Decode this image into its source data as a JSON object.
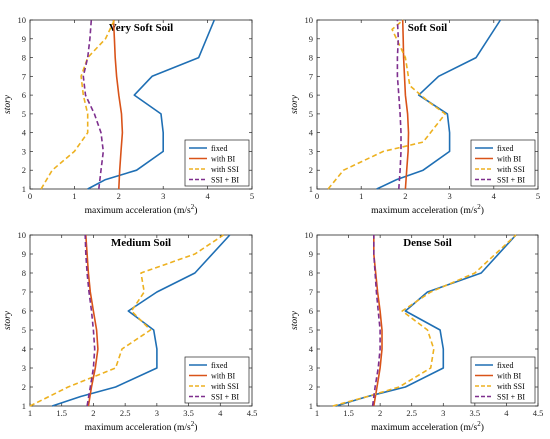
{
  "chart_data": [
    {
      "type": "line",
      "title": "Very Soft Soil",
      "xlabel": "maximum acceleration (m/s",
      "xlabel_sup": "2",
      "xlabel_close": ")",
      "ylabel": "story",
      "xlim": [
        0,
        5
      ],
      "ylim": [
        1,
        10
      ],
      "xticks": [
        "0",
        "1",
        "2",
        "3",
        "4",
        "5"
      ],
      "xtick_values": [
        0,
        1,
        2,
        3,
        4,
        5
      ],
      "yticks": [
        "1",
        "2",
        "3",
        "4",
        "5",
        "6",
        "7",
        "8",
        "9",
        "10"
      ],
      "legend_position": "lower-right",
      "series": [
        {
          "name": "fixed",
          "color": "#1f6fb4",
          "dash": "none",
          "x": [
            1.3,
            1.7,
            2.4,
            3.0,
            3.0,
            2.95,
            2.35,
            2.75,
            3.8,
            4.15
          ],
          "y": [
            1,
            1.5,
            2,
            3,
            4,
            5,
            6,
            7,
            8,
            10
          ]
        },
        {
          "name": "with BI",
          "color": "#d95319",
          "dash": "none",
          "x": [
            2.0,
            2.02,
            2.05,
            2.08,
            2.06,
            2.0,
            1.95,
            1.92,
            1.9,
            1.88
          ],
          "y": [
            1,
            2,
            3,
            4,
            5,
            6,
            7,
            8,
            9,
            10
          ]
        },
        {
          "name": "with SSI",
          "color": "#edb120",
          "dash": "dashed",
          "x": [
            0.25,
            0.5,
            1.0,
            1.3,
            1.3,
            1.2,
            1.15,
            1.3,
            1.7,
            1.9
          ],
          "y": [
            1,
            2,
            3,
            4,
            5,
            6,
            7,
            8,
            9,
            10
          ]
        },
        {
          "name": "SSI + BI",
          "color": "#7e2f8e",
          "dash": "dashed",
          "x": [
            1.55,
            1.6,
            1.65,
            1.6,
            1.45,
            1.25,
            1.2,
            1.3,
            1.35,
            1.38
          ],
          "y": [
            1,
            2,
            3,
            4,
            5,
            6,
            7,
            8,
            9,
            10
          ]
        }
      ]
    },
    {
      "type": "line",
      "title": "Soft Soil",
      "xlabel": "maximum acceleration (m/s",
      "xlabel_sup": "2",
      "xlabel_close": ")",
      "ylabel": "story",
      "xlim": [
        0,
        5
      ],
      "ylim": [
        1,
        10
      ],
      "xticks": [
        "0",
        "1",
        "2",
        "3",
        "4",
        "5"
      ],
      "xtick_values": [
        0,
        1,
        2,
        3,
        4,
        5
      ],
      "yticks": [
        "1",
        "2",
        "3",
        "4",
        "5",
        "6",
        "7",
        "8",
        "9",
        "10"
      ],
      "legend_position": "lower-right",
      "series": [
        {
          "name": "fixed",
          "color": "#1f6fb4",
          "dash": "none",
          "x": [
            1.35,
            1.8,
            2.4,
            3.0,
            3.0,
            2.95,
            2.3,
            2.75,
            3.6,
            4.15
          ],
          "y": [
            1,
            1.5,
            2,
            3,
            4,
            5,
            6,
            7,
            8,
            10
          ]
        },
        {
          "name": "with BI",
          "color": "#d95319",
          "dash": "none",
          "x": [
            2.0,
            2.03,
            2.06,
            2.07,
            2.05,
            2.0,
            1.98,
            1.96,
            1.95,
            1.94
          ],
          "y": [
            1,
            2,
            3,
            4,
            5,
            6,
            7,
            8,
            9,
            10
          ]
        },
        {
          "name": "with SSI",
          "color": "#edb120",
          "dash": "dashed",
          "x": [
            0.25,
            0.6,
            1.5,
            2.4,
            2.9,
            2.55,
            2.1,
            2.0,
            1.7,
            1.95
          ],
          "y": [
            1,
            2,
            3,
            3.5,
            5,
            5.6,
            6.5,
            8,
            9.5,
            10
          ]
        },
        {
          "name": "SSI + BI",
          "color": "#7e2f8e",
          "dash": "dashed",
          "x": [
            1.85,
            1.88,
            1.9,
            1.9,
            1.88,
            1.85,
            1.82,
            1.82,
            1.84,
            1.82
          ],
          "y": [
            1,
            2,
            3,
            4,
            5,
            6,
            7,
            8,
            9,
            10
          ]
        }
      ]
    },
    {
      "type": "line",
      "title": "Medium Soil",
      "xlabel": "maximum acceleration (m/s",
      "xlabel_sup": "2",
      "xlabel_close": ")",
      "ylabel": "story",
      "xlim": [
        1,
        4.5
      ],
      "ylim": [
        1,
        10
      ],
      "xticks": [
        "1",
        "1.5",
        "2",
        "2.5",
        "3",
        "3.5",
        "4",
        "4.5"
      ],
      "xtick_values": [
        1,
        1.5,
        2,
        2.5,
        3,
        3.5,
        4,
        4.5
      ],
      "yticks": [
        "1",
        "2",
        "3",
        "4",
        "5",
        "6",
        "7",
        "8",
        "9",
        "10"
      ],
      "legend_position": "lower-right",
      "series": [
        {
          "name": "fixed",
          "color": "#1f6fb4",
          "dash": "none",
          "x": [
            1.35,
            1.8,
            2.35,
            3.0,
            3.0,
            2.95,
            2.55,
            3.0,
            3.6,
            4.15
          ],
          "y": [
            1,
            1.5,
            2,
            3,
            4,
            5,
            6,
            7,
            8,
            10
          ]
        },
        {
          "name": "with BI",
          "color": "#d95319",
          "dash": "none",
          "x": [
            1.92,
            1.97,
            2.03,
            2.07,
            2.05,
            2.0,
            1.95,
            1.92,
            1.9,
            1.88
          ],
          "y": [
            1,
            2,
            3,
            4,
            5,
            6,
            7,
            8,
            9,
            10
          ]
        },
        {
          "name": "with SSI",
          "color": "#edb120",
          "dash": "dashed",
          "x": [
            1.0,
            1.6,
            2.35,
            2.45,
            2.9,
            2.6,
            2.8,
            2.75,
            3.6,
            4.05
          ],
          "y": [
            1,
            2,
            3,
            4,
            5,
            6,
            7,
            8,
            9,
            10
          ]
        },
        {
          "name": "SSI + BI",
          "color": "#7e2f8e",
          "dash": "dashed",
          "x": [
            1.9,
            1.95,
            2.0,
            2.02,
            2.0,
            1.97,
            1.93,
            1.9,
            1.88,
            1.87
          ],
          "y": [
            1,
            2,
            3,
            4,
            5,
            6,
            7,
            8,
            9,
            10
          ]
        }
      ]
    },
    {
      "type": "line",
      "title": "Dense Soil",
      "xlabel": "maximum acceleration (m/s",
      "xlabel_sup": "2",
      "xlabel_close": ")",
      "ylabel": "story",
      "xlim": [
        1,
        4.5
      ],
      "ylim": [
        1,
        10
      ],
      "xticks": [
        "1",
        "1.5",
        "2",
        "2.5",
        "3",
        "3.5",
        "4",
        "4.5"
      ],
      "xtick_values": [
        1,
        1.5,
        2,
        2.5,
        3,
        3.5,
        4,
        4.5
      ],
      "yticks": [
        "1",
        "2",
        "3",
        "4",
        "5",
        "6",
        "7",
        "8",
        "9",
        "10"
      ],
      "legend_position": "lower-right",
      "series": [
        {
          "name": "fixed",
          "color": "#1f6fb4",
          "dash": "none",
          "x": [
            1.3,
            1.8,
            2.4,
            3.0,
            3.0,
            2.95,
            2.4,
            2.75,
            3.6,
            4.15
          ],
          "y": [
            1,
            1.5,
            2,
            3,
            4,
            5,
            6,
            7,
            8,
            10
          ]
        },
        {
          "name": "with BI",
          "color": "#d95319",
          "dash": "none",
          "x": [
            1.9,
            1.95,
            2.0,
            2.03,
            2.03,
            2.0,
            1.96,
            1.93,
            1.9,
            1.9
          ],
          "y": [
            1,
            2,
            3,
            4,
            5,
            6,
            7,
            8,
            9,
            10
          ]
        },
        {
          "name": "with SSI",
          "color": "#edb120",
          "dash": "dashed",
          "x": [
            1.25,
            1.8,
            2.3,
            2.8,
            2.85,
            2.75,
            2.35,
            2.8,
            3.5,
            4.15
          ],
          "y": [
            1,
            1.5,
            2,
            3,
            4,
            5,
            6,
            7,
            8,
            10
          ]
        },
        {
          "name": "SSI + BI",
          "color": "#7e2f8e",
          "dash": "dashed",
          "x": [
            1.88,
            1.92,
            1.97,
            2.0,
            2.0,
            1.97,
            1.94,
            1.92,
            1.9,
            1.9
          ],
          "y": [
            1,
            2,
            3,
            4,
            5,
            6,
            7,
            8,
            9,
            10
          ]
        }
      ]
    }
  ]
}
